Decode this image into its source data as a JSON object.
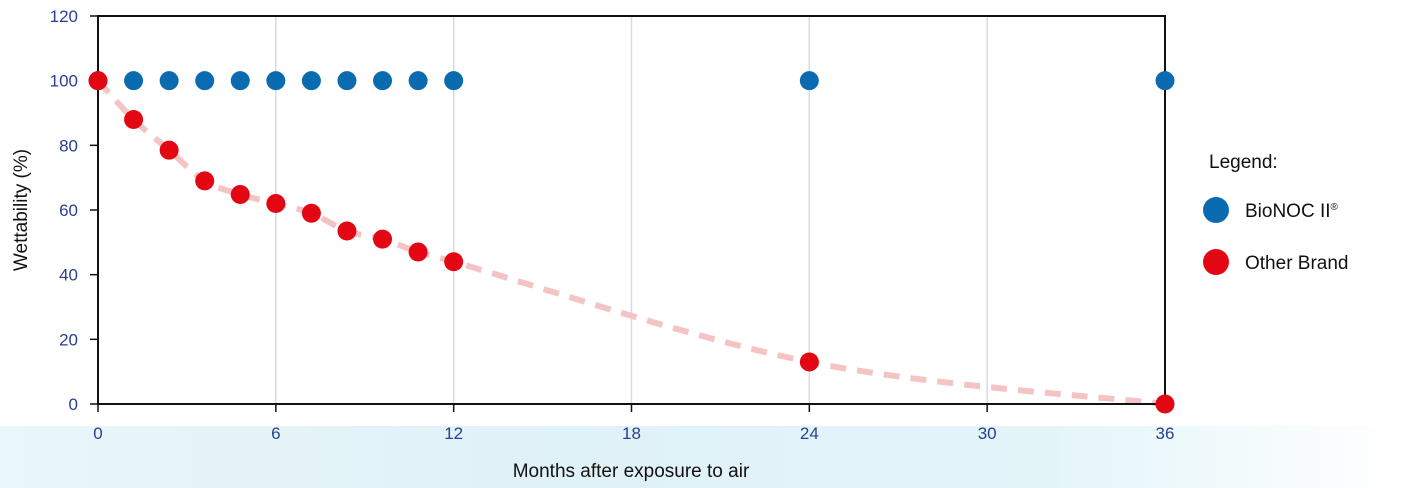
{
  "chart_data": {
    "type": "scatter",
    "xlabel": "Months after exposure to air",
    "ylabel": "Wettability (%)",
    "xlim": [
      0,
      36
    ],
    "ylim": [
      0,
      120
    ],
    "x_ticks": [
      "0",
      "6",
      "12",
      "18",
      "24",
      "30",
      "36"
    ],
    "y_ticks": [
      "0",
      "20",
      "40",
      "60",
      "80",
      "100",
      "120"
    ],
    "grid": "vertical",
    "legend": {
      "title": "Legend:",
      "placement": "right"
    },
    "series": [
      {
        "name": "BioNOC II",
        "name_superscript": "®",
        "color": "#0b6bb0",
        "points": [
          [
            0,
            100
          ],
          [
            1.2,
            100
          ],
          [
            2.4,
            100
          ],
          [
            3.6,
            100
          ],
          [
            4.8,
            100
          ],
          [
            6,
            100
          ],
          [
            7.2,
            100
          ],
          [
            8.4,
            100
          ],
          [
            9.6,
            100
          ],
          [
            10.8,
            100
          ],
          [
            12,
            100
          ],
          [
            24,
            100
          ],
          [
            36,
            100
          ]
        ]
      },
      {
        "name": "Other Brand",
        "color": "#e30613",
        "trend_color": "#f4c4c4",
        "points": [
          [
            0,
            100
          ],
          [
            1.2,
            88
          ],
          [
            2.4,
            78.5
          ],
          [
            3.6,
            69
          ],
          [
            4.8,
            64.8
          ],
          [
            6,
            62
          ],
          [
            7.2,
            59
          ],
          [
            8.4,
            53.5
          ],
          [
            9.6,
            51
          ],
          [
            10.8,
            47
          ],
          [
            12,
            44
          ],
          [
            24,
            13
          ],
          [
            36,
            0
          ]
        ]
      }
    ]
  }
}
